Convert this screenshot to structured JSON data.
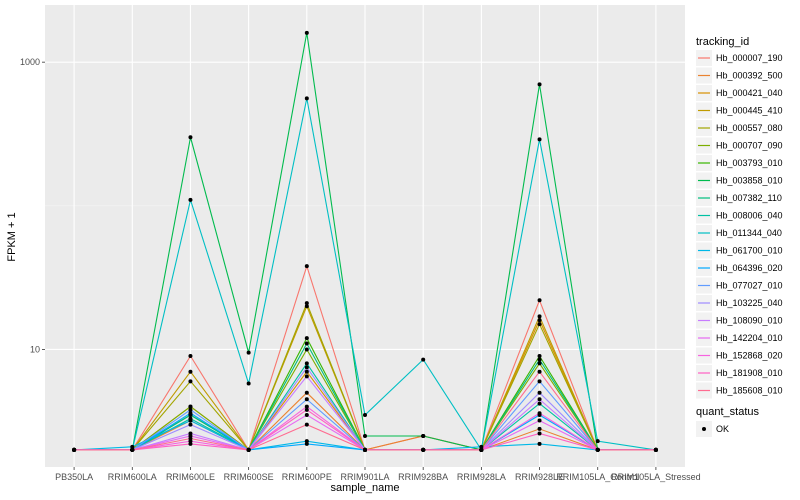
{
  "chart_data": {
    "type": "line",
    "xlabel": "sample_name",
    "ylabel": "FPKM + 1",
    "y_scale": "log10",
    "ylim": [
      1.52,
      2500
    ],
    "y_ticks": [
      10,
      1000
    ],
    "y_tick_labels": [
      "10",
      "1000"
    ],
    "grid": true,
    "legend_position": "right",
    "categories": [
      "PB350LA",
      "RRIM600LA",
      "RRIM600LE",
      "RRIM600SE",
      "RRIM600PE",
      "RRIM901LA",
      "RRIM928BA",
      "RRIM928LA",
      "RRIM928LE",
      "RRIM105LA_Control",
      "RRIM105LA_Stressed"
    ],
    "legend_title": "tracking_id",
    "series": [
      {
        "name": "Hb_000007_190",
        "color": "#F8766D",
        "values": [
          2,
          2,
          9,
          2,
          38,
          2,
          2.5,
          2,
          22,
          2,
          2
        ]
      },
      {
        "name": "Hb_000392_500",
        "color": "#EA8331",
        "values": [
          2,
          2,
          3.2,
          2,
          5,
          2,
          2.5,
          2,
          2.8,
          2,
          2
        ]
      },
      {
        "name": "Hb_000421_040",
        "color": "#D89000",
        "values": [
          2,
          2,
          4,
          2,
          7,
          2,
          2,
          2,
          16,
          2,
          2
        ]
      },
      {
        "name": "Hb_000445_410",
        "color": "#C09B00",
        "values": [
          2,
          2,
          7,
          2,
          20,
          2,
          2,
          2,
          17,
          2,
          2
        ]
      },
      {
        "name": "Hb_000557_080",
        "color": "#A3A500",
        "values": [
          2,
          2,
          6,
          2,
          21,
          2,
          2,
          2,
          15,
          2,
          2
        ]
      },
      {
        "name": "Hb_000707_090",
        "color": "#7CAE00",
        "values": [
          2,
          2,
          4,
          2,
          10,
          2,
          2,
          2,
          8,
          2,
          2
        ]
      },
      {
        "name": "Hb_003793_010",
        "color": "#39B600",
        "values": [
          2,
          2,
          3.5,
          2,
          12,
          2,
          2,
          2,
          9,
          2,
          2
        ]
      },
      {
        "name": "Hb_003858_010",
        "color": "#00BB4E",
        "values": [
          2,
          2,
          300,
          9.5,
          1600,
          2.5,
          2.5,
          2,
          700,
          2,
          2
        ]
      },
      {
        "name": "Hb_007382_110",
        "color": "#00BF7D",
        "values": [
          2,
          2,
          3.5,
          2,
          11,
          2,
          2,
          2,
          8.5,
          2,
          2
        ]
      },
      {
        "name": "Hb_008006_040",
        "color": "#00C1A3",
        "values": [
          2,
          2,
          3.3,
          2,
          8,
          2,
          2,
          2,
          4.2,
          2,
          2
        ]
      },
      {
        "name": "Hb_011344_040",
        "color": "#00BFC4",
        "values": [
          2,
          2,
          110,
          5.8,
          560,
          3.5,
          8.5,
          2,
          290,
          2.3,
          2
        ]
      },
      {
        "name": "Hb_061700_010",
        "color": "#00B8E7",
        "values": [
          2,
          2.1,
          3.2,
          2,
          2.3,
          2,
          2,
          2.1,
          2.2,
          2,
          2
        ]
      },
      {
        "name": "Hb_064396_020",
        "color": "#00A9FF",
        "values": [
          2,
          2,
          3.6,
          2,
          2.2,
          2,
          2,
          2,
          3.5,
          2,
          2
        ]
      },
      {
        "name": "Hb_077027_010",
        "color": "#619CFF",
        "values": [
          2,
          2,
          3.8,
          2,
          4.5,
          2,
          2,
          2,
          6,
          2,
          2
        ]
      },
      {
        "name": "Hb_103225_040",
        "color": "#9F8CFF",
        "values": [
          2,
          2,
          3,
          2,
          7.5,
          2,
          2,
          2,
          5,
          2,
          2
        ]
      },
      {
        "name": "Hb_108090_010",
        "color": "#C77CFF",
        "values": [
          2,
          2,
          2.6,
          2,
          6.5,
          2,
          2,
          2,
          4.5,
          2,
          2
        ]
      },
      {
        "name": "Hb_142204_010",
        "color": "#E76BF3",
        "values": [
          2,
          2,
          2.5,
          2,
          3.5,
          2,
          2,
          2,
          3.2,
          2,
          2
        ]
      },
      {
        "name": "Hb_152868_020",
        "color": "#F763E0",
        "values": [
          2,
          2,
          2.3,
          2,
          4,
          2,
          2,
          2,
          3.6,
          2,
          2
        ]
      },
      {
        "name": "Hb_181908_010",
        "color": "#FF61C3",
        "values": [
          2,
          2,
          2.2,
          2,
          3.8,
          2,
          2,
          2,
          2.6,
          2,
          2
        ]
      },
      {
        "name": "Hb_185608_010",
        "color": "#FF6C91",
        "values": [
          2,
          2,
          2.4,
          2,
          3,
          2,
          2,
          2,
          7,
          2,
          2
        ]
      }
    ],
    "shape_legend": {
      "title": "quant_status",
      "items": [
        "OK"
      ]
    }
  }
}
